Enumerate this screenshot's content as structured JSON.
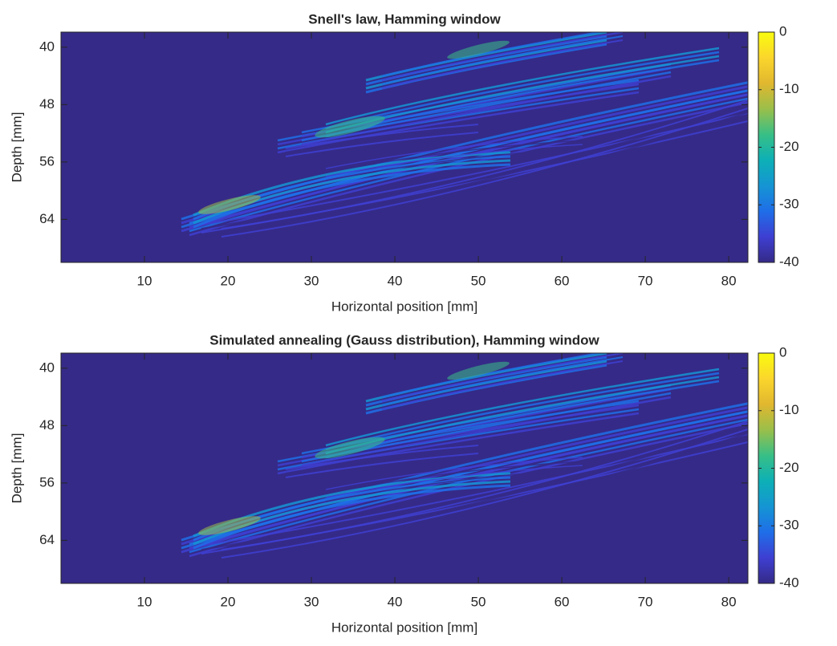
{
  "chart_data": [
    {
      "type": "heatmap",
      "title": "Snell's law, Hamming window",
      "xlabel": "Horizontal position [mm]",
      "ylabel": "Depth [mm]",
      "xlim": [
        0,
        82.3
      ],
      "xticks": [
        10,
        20,
        30,
        40,
        50,
        60,
        70,
        80
      ],
      "ylim": [
        37.9,
        70
      ],
      "yreverse": true,
      "yticks": [
        40,
        48,
        56,
        64
      ],
      "clim": [
        -40,
        0
      ],
      "cticks": [
        -40,
        -30,
        -20,
        -10,
        0
      ],
      "colormap": [
        "#352a87",
        "#3e3fd2",
        "#1f6ee8",
        "#1595d3",
        "#0db0b6",
        "#38bf86",
        "#9abf4a",
        "#e1b72f",
        "#fbd62c",
        "#f9fb0e"
      ]
    },
    {
      "type": "heatmap",
      "title": "Simulated annealing (Gauss distribution), Hamming window",
      "xlabel": "Horizontal position [mm]",
      "ylabel": "Depth [mm]",
      "xlim": [
        0,
        82.3
      ],
      "xticks": [
        10,
        20,
        30,
        40,
        50,
        60,
        70,
        80
      ],
      "ylim": [
        37.9,
        70
      ],
      "yreverse": true,
      "yticks": [
        40,
        48,
        56,
        64
      ],
      "clim": [
        -40,
        0
      ],
      "cticks": [
        -40,
        -30,
        -20,
        -10,
        0
      ],
      "colormap": [
        "#352a87",
        "#3e3fd2",
        "#1f6ee8",
        "#1595d3",
        "#0db0b6",
        "#38bf86",
        "#9abf4a",
        "#e1b72f",
        "#fbd62c",
        "#f9fb0e"
      ]
    }
  ]
}
